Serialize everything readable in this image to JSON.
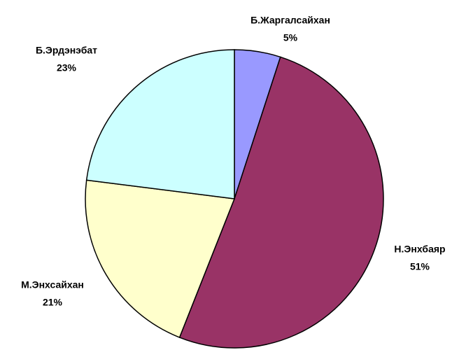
{
  "chart_data": {
    "type": "pie",
    "categories": [
      "Б.Жаргалсайхан",
      "Н.Энхбаяр",
      "М.Энхсайхан",
      "Б.Эрдэнэбат"
    ],
    "values": [
      5,
      51,
      21,
      23
    ],
    "value_labels": [
      "5%",
      "51%",
      "21%",
      "23%"
    ],
    "colors": [
      "#9999ff",
      "#993366",
      "#ffffcc",
      "#ccffff"
    ]
  }
}
